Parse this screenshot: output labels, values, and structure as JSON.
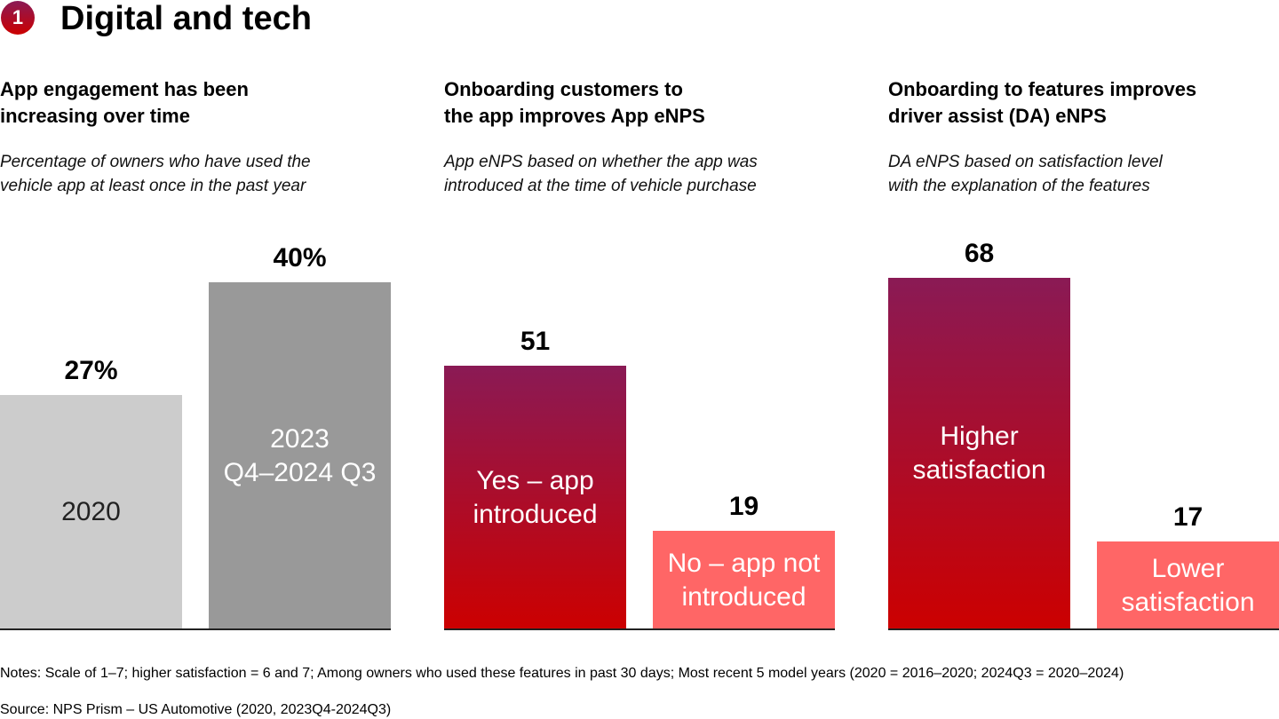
{
  "header": {
    "number": "1",
    "title": "Digital and tech"
  },
  "chart_data": [
    {
      "type": "bar",
      "title": "App engagement has been\nincreasing over time",
      "subtitle": "Percentage of owners who have used the\nvehicle app at least once in the past year",
      "categories": [
        "2020",
        "2023\nQ4–2024 Q3"
      ],
      "values": [
        27,
        40
      ],
      "value_labels": [
        "27%",
        "40%"
      ],
      "colors": [
        [
          "#cccccc",
          "#cccccc"
        ],
        [
          "#999999",
          "#999999"
        ]
      ],
      "label_colors": [
        "#222222",
        "#ffffff"
      ]
    },
    {
      "type": "bar",
      "title": "Onboarding customers to\nthe app improves App eNPS",
      "subtitle": "App eNPS based on whether the app was\nintroduced at the time of vehicle purchase",
      "categories": [
        "Yes – app\nintroduced",
        "No – app not\nintroduced"
      ],
      "values": [
        51,
        19
      ],
      "colors": [
        [
          "#8a1a55",
          "#cc0000"
        ],
        [
          "#ff6666",
          "#ff6666"
        ]
      ],
      "label_colors": [
        "#ffffff",
        "#ffffff"
      ]
    },
    {
      "type": "bar",
      "title": "Onboarding to features improves\ndriver assist (DA) eNPS",
      "subtitle": "DA eNPS based on satisfaction level\nwith the explanation of the features",
      "categories": [
        "Higher\nsatisfaction",
        "Lower\nsatisfaction"
      ],
      "values": [
        68,
        17
      ],
      "colors": [
        [
          "#8a1a55",
          "#cc0000"
        ],
        [
          "#ff6666",
          "#ff6666"
        ]
      ],
      "label_colors": [
        "#ffffff",
        "#ffffff"
      ]
    }
  ],
  "notes": "Notes: Scale of 1–7; higher satisfaction = 6 and 7; Among owners who used these features in past 30 days; Most recent 5 model years (2020 = 2016–2020; 2024Q3 = 2020–2024)",
  "source": "Source: NPS Prism – US Automotive (2020, 2023Q4-2024Q3)"
}
